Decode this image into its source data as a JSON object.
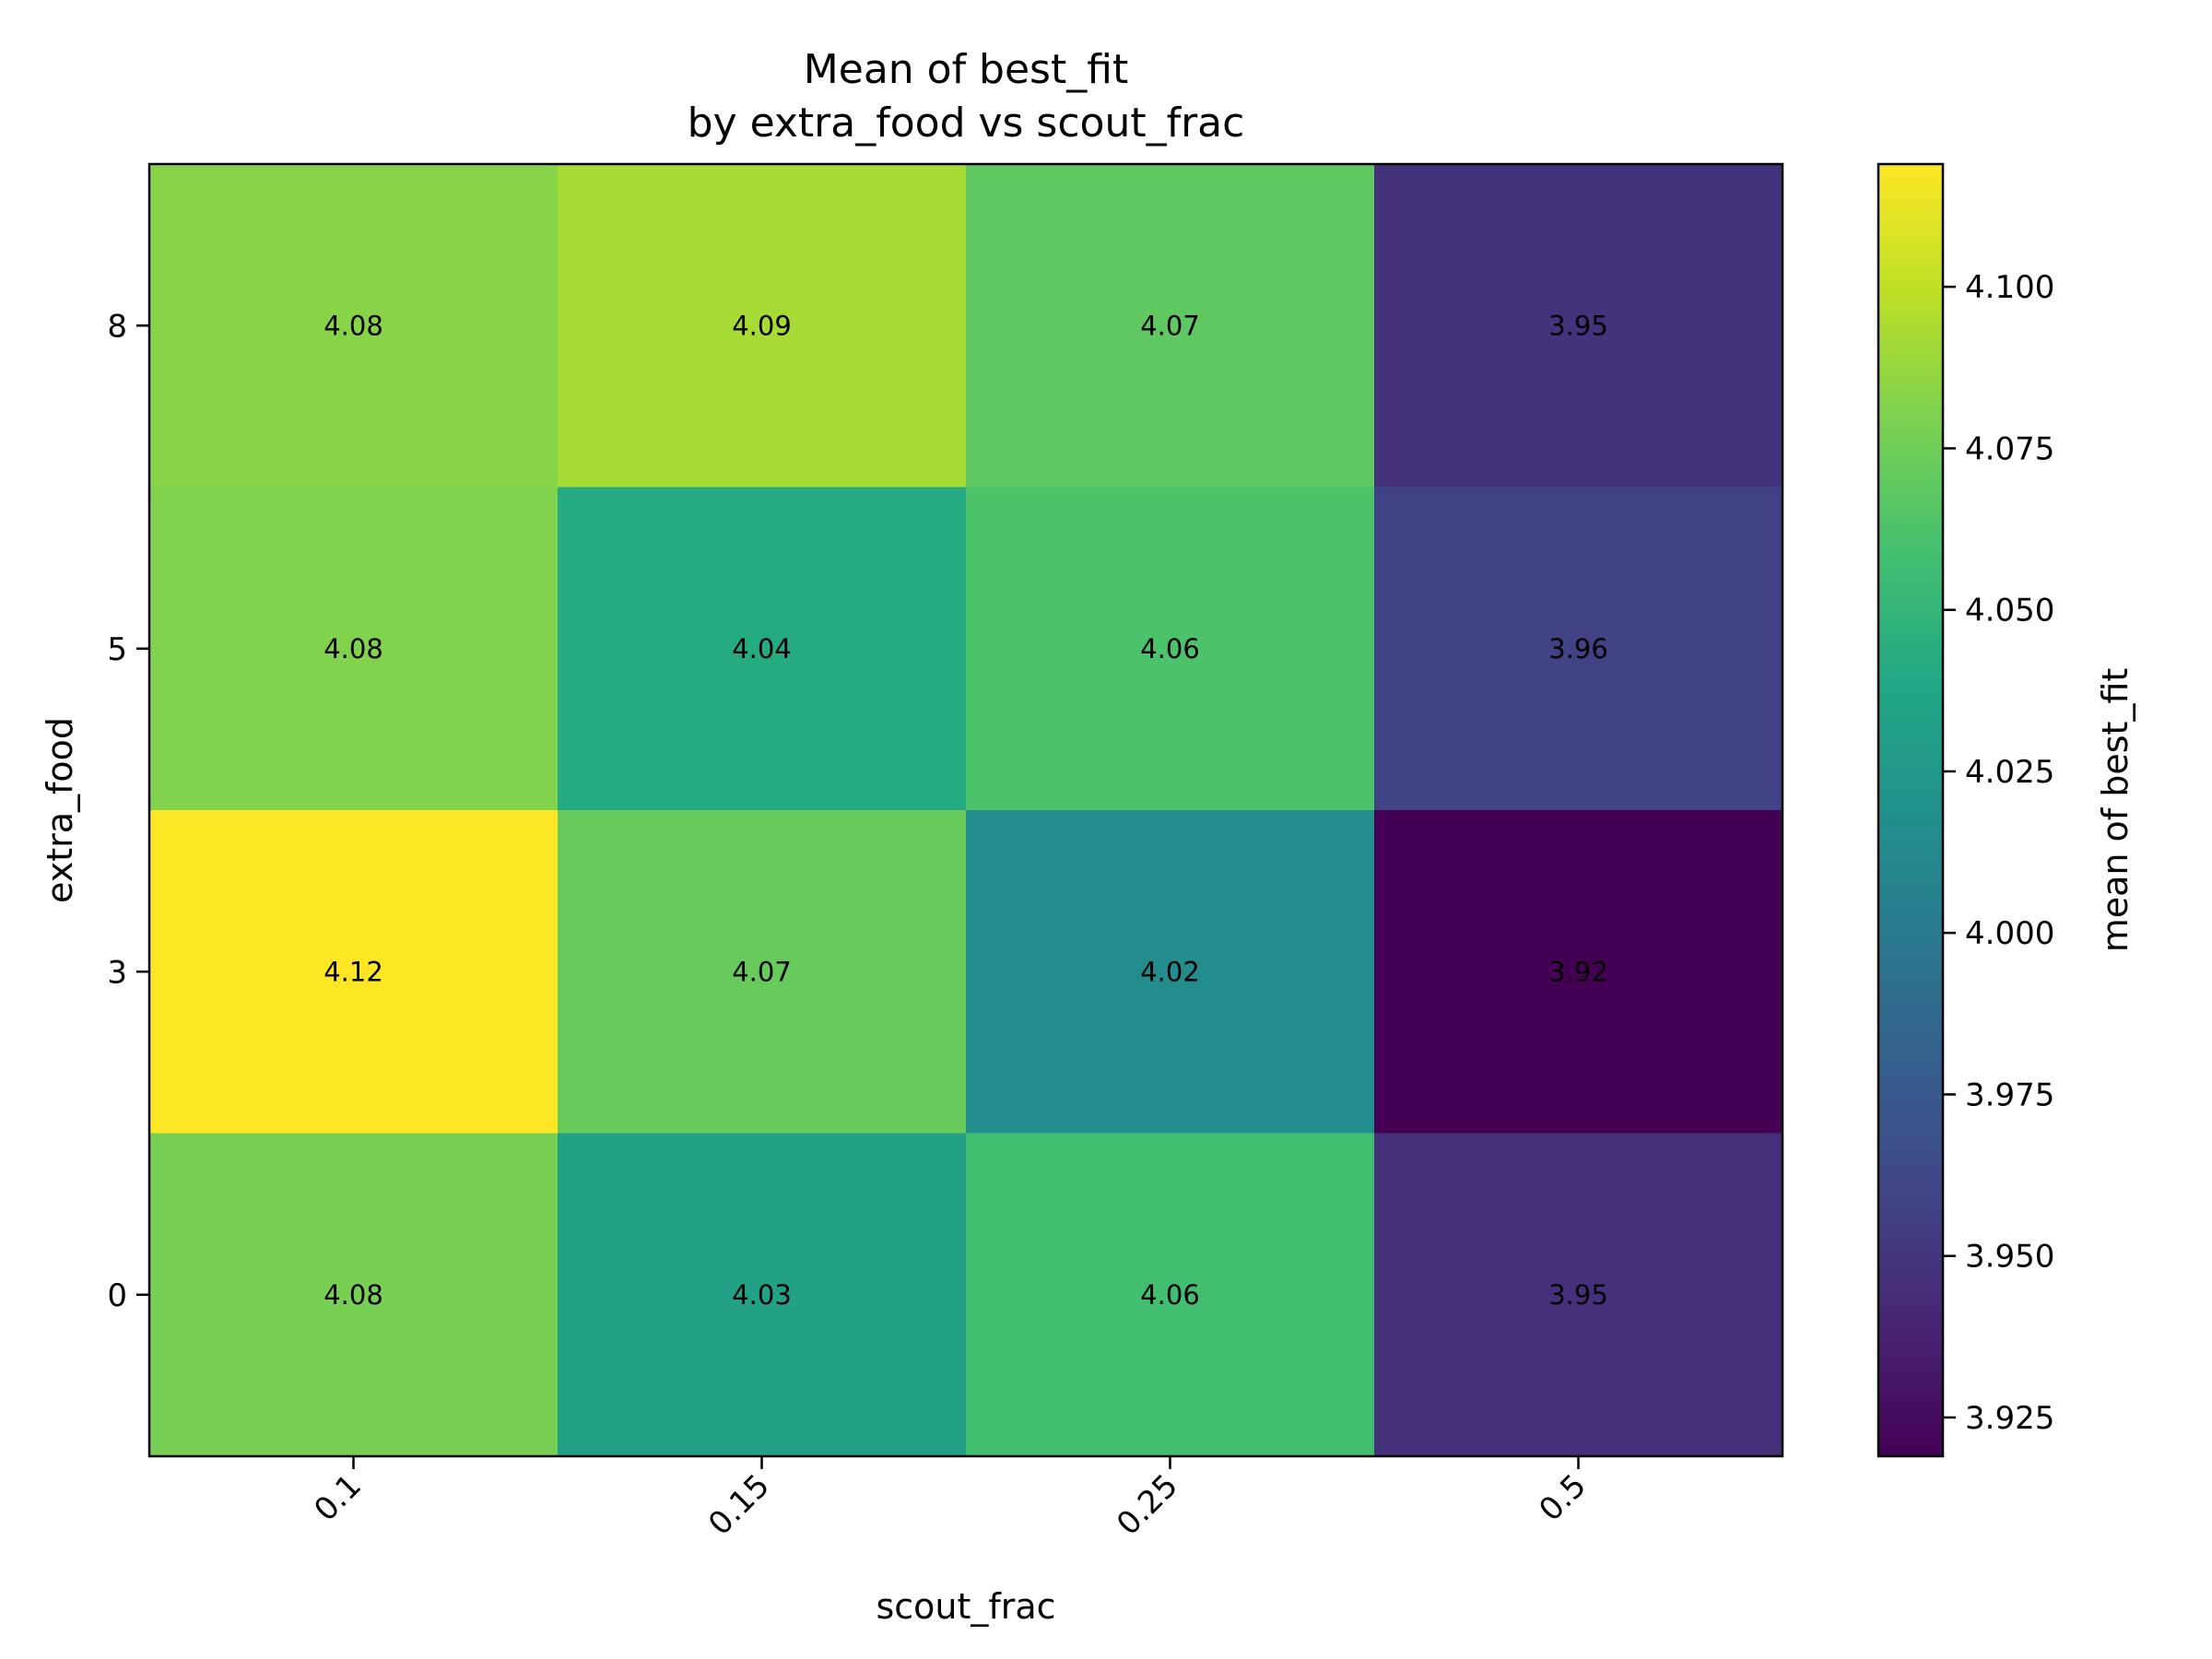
{
  "chart_data": {
    "type": "heatmap",
    "title_line1": "Mean of best_fit",
    "title_line2": "by extra_food vs scout_frac",
    "xlabel": "scout_frac",
    "ylabel": "extra_food",
    "x_categories": [
      "0.1",
      "0.15",
      "0.25",
      "0.5"
    ],
    "y_categories": [
      "8",
      "5",
      "3",
      "0"
    ],
    "values": [
      [
        4.083,
        4.092,
        4.069,
        3.948
      ],
      [
        4.081,
        4.041,
        4.062,
        3.958
      ],
      [
        4.119,
        4.072,
        4.015,
        3.919
      ],
      [
        4.078,
        4.033,
        4.058,
        3.946
      ]
    ],
    "cell_labels": [
      [
        "4.08",
        "4.09",
        "4.07",
        "3.95"
      ],
      [
        "4.08",
        "4.04",
        "4.06",
        "3.96"
      ],
      [
        "4.12",
        "4.07",
        "4.02",
        "3.92"
      ],
      [
        "4.08",
        "4.03",
        "4.06",
        "3.95"
      ]
    ],
    "colorscale": "viridis",
    "colorbar": {
      "label": "mean of best_fit",
      "range": [
        3.919,
        4.119
      ],
      "ticks": [
        3.925,
        3.95,
        3.975,
        4.0,
        4.025,
        4.05,
        4.075,
        4.1
      ],
      "tick_labels": [
        "3.925",
        "3.950",
        "3.975",
        "4.000",
        "4.025",
        "4.050",
        "4.075",
        "4.100"
      ]
    }
  }
}
